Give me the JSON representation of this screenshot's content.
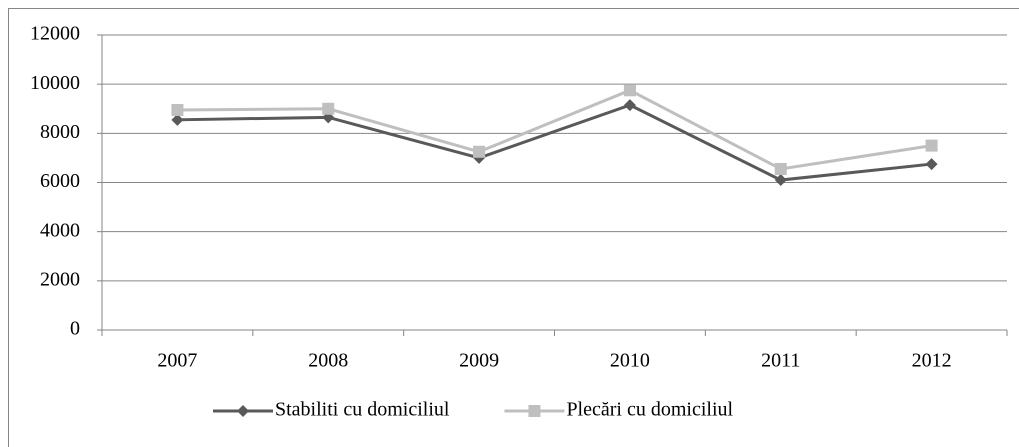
{
  "chart_data": {
    "type": "line",
    "categories": [
      "2007",
      "2008",
      "2009",
      "2010",
      "2011",
      "2012"
    ],
    "series": [
      {
        "name": "Stabiliti cu domiciliul",
        "color": "#595959",
        "marker": "diamond",
        "values": [
          8550,
          8650,
          7000,
          9150,
          6100,
          6750
        ]
      },
      {
        "name": "Plecări cu domiciliul",
        "color": "#bfbfbf",
        "marker": "square",
        "values": [
          8950,
          9000,
          7250,
          9750,
          6550,
          7500
        ]
      }
    ],
    "ylim": [
      0,
      12000
    ],
    "yticks": [
      0,
      2000,
      4000,
      6000,
      8000,
      10000,
      12000
    ],
    "grid": true,
    "legend": "bottom"
  }
}
